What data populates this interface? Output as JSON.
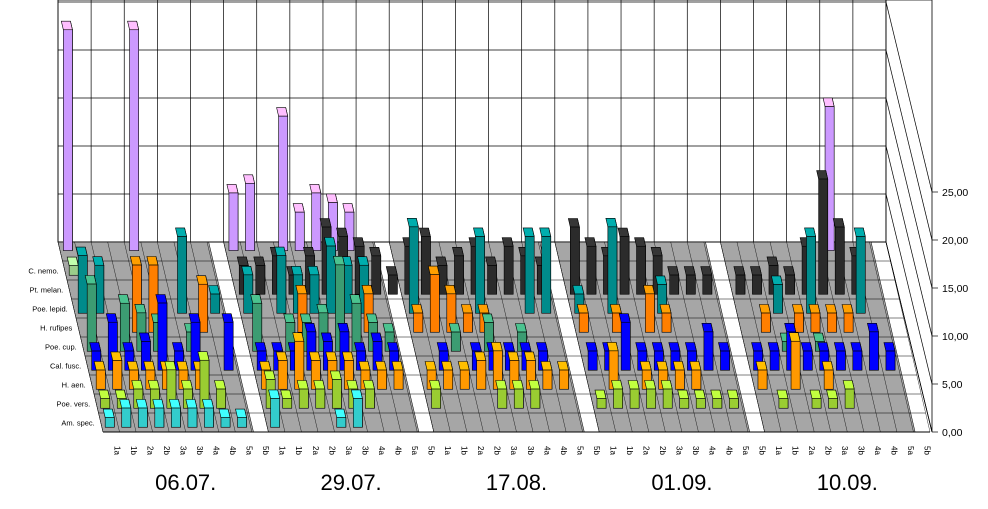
{
  "chart_data": {
    "type": "bar",
    "title": "",
    "xlabel": "",
    "ylabel": "",
    "ylim": [
      0,
      25
    ],
    "y_ticks": [
      "0,00",
      "5,00",
      "10,00",
      "15,00",
      "20,00",
      "25,00"
    ],
    "dates": [
      "06.07.",
      "29.07.",
      "17.08.",
      "01.09.",
      "10.09."
    ],
    "traps": [
      "1a",
      "1b",
      "2a",
      "2b",
      "3a",
      "3b",
      "4a",
      "4b",
      "5a",
      "5b"
    ],
    "colors": {
      "C. nemo.": "#9acd8a",
      "Pt. melan.": "#2b2b2b",
      "Poe. lepid.": "#008b8b",
      "H. rufipes": "#ff7f00",
      "Poe. cup.": "#3c9c72",
      "Cal. fusc.": "#0000ff",
      "H. aen.": "#ff9900",
      "Poe. vers.": "#9acd32",
      "Am. spec.": "#33cccc",
      "purple": "#cc99ff"
    },
    "series": [
      {
        "name": "C. nemo.",
        "values": [
          [
            1,
            0,
            0,
            0,
            0,
            0,
            0,
            0,
            0,
            0
          ],
          [
            0,
            0,
            0,
            0,
            0,
            0,
            0,
            0,
            0,
            0
          ],
          [
            0,
            0,
            0,
            0,
            0,
            0,
            0,
            0,
            0,
            0
          ],
          [
            0,
            0,
            0,
            0,
            0,
            0,
            0,
            0,
            0,
            0
          ],
          [
            0,
            0,
            0,
            0,
            0,
            0,
            0,
            0,
            0,
            0
          ]
        ]
      },
      {
        "name": "Pt. melan.",
        "values": [
          [
            0,
            0,
            0,
            0,
            0,
            0,
            0,
            0,
            0,
            0
          ],
          [
            3,
            3,
            4,
            2,
            4,
            7,
            6,
            5,
            4,
            2
          ],
          [
            5,
            6,
            3,
            4,
            5,
            3,
            5,
            4,
            3,
            0
          ],
          [
            7,
            5,
            4,
            6,
            5,
            4,
            2,
            2,
            2,
            0
          ],
          [
            2,
            2,
            3,
            2,
            5,
            12,
            7,
            4,
            0,
            0
          ]
        ]
      },
      {
        "name": "Poe. lepid.",
        "values": [
          [
            6,
            5,
            0,
            0,
            0,
            0,
            8,
            0,
            2,
            0
          ],
          [
            4,
            0,
            6,
            4,
            4,
            7,
            5,
            5,
            0,
            0
          ],
          [
            9,
            0,
            0,
            0,
            8,
            0,
            0,
            8,
            8,
            0
          ],
          [
            2,
            0,
            9,
            0,
            0,
            3,
            0,
            0,
            0,
            0
          ],
          [
            0,
            0,
            3,
            0,
            8,
            0,
            0,
            8,
            0,
            0
          ]
        ]
      },
      {
        "name": "H. rufipes",
        "values": [
          [
            0,
            0,
            0,
            7,
            7,
            0,
            0,
            5,
            0,
            0
          ],
          [
            0,
            0,
            0,
            4,
            0,
            0,
            0,
            4,
            0,
            0
          ],
          [
            2,
            6,
            4,
            2,
            2,
            0,
            0,
            0,
            0,
            0
          ],
          [
            2,
            0,
            2,
            0,
            4,
            2,
            0,
            0,
            0,
            0
          ],
          [
            0,
            2,
            0,
            2,
            2,
            2,
            2,
            0,
            0,
            0
          ]
        ]
      },
      {
        "name": "Poe. cup.",
        "values": [
          [
            7,
            0,
            5,
            4,
            3,
            0,
            2,
            0,
            0,
            0
          ],
          [
            5,
            0,
            3,
            3,
            4,
            9,
            5,
            3,
            2,
            0
          ],
          [
            0,
            0,
            2,
            0,
            3,
            0,
            2,
            0,
            0,
            0
          ],
          [
            0,
            0,
            0,
            0,
            0,
            0,
            0,
            0,
            0,
            0
          ],
          [
            0,
            0,
            1,
            0,
            1,
            0,
            0,
            0,
            0,
            0
          ]
        ]
      },
      {
        "name": "Cal. fusc.",
        "values": [
          [
            2,
            5,
            2,
            3,
            7,
            2,
            5,
            0,
            5,
            0
          ],
          [
            2,
            2,
            2,
            4,
            3,
            4,
            2,
            3,
            2,
            0
          ],
          [
            0,
            2,
            0,
            2,
            2,
            2,
            2,
            2,
            0,
            0
          ],
          [
            2,
            2,
            5,
            2,
            2,
            2,
            2,
            4,
            2,
            0
          ],
          [
            2,
            2,
            4,
            2,
            2,
            2,
            2,
            4,
            2,
            0
          ]
        ]
      },
      {
        "name": "H. aen.",
        "values": [
          [
            2,
            3,
            2,
            2,
            2,
            2,
            2,
            0,
            0,
            0
          ],
          [
            2,
            3,
            5,
            3,
            3,
            3,
            2,
            2,
            2,
            0
          ],
          [
            2,
            2,
            2,
            3,
            4,
            3,
            3,
            2,
            2,
            0
          ],
          [
            0,
            4,
            0,
            2,
            2,
            2,
            2,
            0,
            0,
            0
          ],
          [
            2,
            0,
            5,
            0,
            2,
            0,
            0,
            0,
            0,
            0
          ]
        ]
      },
      {
        "name": "Poe. vers.",
        "values": [
          [
            1,
            1,
            2,
            2,
            4,
            2,
            5,
            2,
            0,
            0
          ],
          [
            3,
            1,
            2,
            2,
            3,
            2,
            2,
            0,
            0,
            0
          ],
          [
            2,
            0,
            0,
            0,
            2,
            2,
            2,
            0,
            0,
            0
          ],
          [
            1,
            2,
            2,
            2,
            2,
            1,
            1,
            1,
            1,
            0
          ],
          [
            0,
            1,
            0,
            1,
            1,
            2,
            0,
            0,
            0,
            0
          ]
        ]
      },
      {
        "name": "Am. spec.",
        "values": [
          [
            1,
            2,
            2,
            2,
            2,
            2,
            2,
            1,
            1,
            0
          ],
          [
            3,
            0,
            0,
            0,
            1,
            3,
            0,
            0,
            0,
            0
          ],
          [
            0,
            0,
            0,
            0,
            0,
            0,
            0,
            0,
            0,
            0
          ],
          [
            0,
            0,
            0,
            0,
            0,
            0,
            0,
            0,
            0,
            0
          ],
          [
            0,
            0,
            0,
            0,
            0,
            0,
            0,
            0,
            0,
            0
          ]
        ]
      }
    ],
    "back_series": [
      {
        "name": "purple",
        "values": [
          [
            23,
            0,
            0,
            0,
            23,
            0,
            0,
            0,
            0,
            0
          ],
          [
            6,
            7,
            0,
            14,
            4,
            6,
            5,
            4,
            0,
            0
          ],
          [
            0,
            0,
            0,
            0,
            0,
            0,
            0,
            0,
            0,
            0
          ],
          [
            0,
            0,
            0,
            0,
            0,
            0,
            0,
            0,
            0,
            0
          ],
          [
            0,
            0,
            0,
            0,
            0,
            0,
            15,
            0,
            0,
            0
          ]
        ]
      }
    ]
  }
}
